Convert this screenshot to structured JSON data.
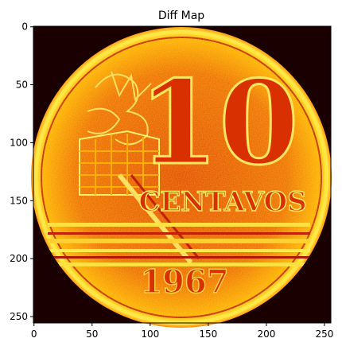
{
  "figure": {
    "title": "Diff Map",
    "image_description_hidden": null
  },
  "coin": {
    "denomination": "10",
    "unit": "CENTAVOS",
    "year": "1967"
  },
  "axes": {
    "x_ticks": [
      "0",
      "50",
      "100",
      "150",
      "200",
      "250"
    ],
    "y_ticks": [
      "0",
      "50",
      "100",
      "150",
      "200",
      "250"
    ],
    "x_range": [
      0,
      256
    ],
    "y_range": [
      0,
      256
    ]
  },
  "colors": {
    "background": "#1a0000",
    "coin_base": "#e85a00",
    "coin_bright": "#ffd000",
    "coin_dark": "#b01800"
  }
}
